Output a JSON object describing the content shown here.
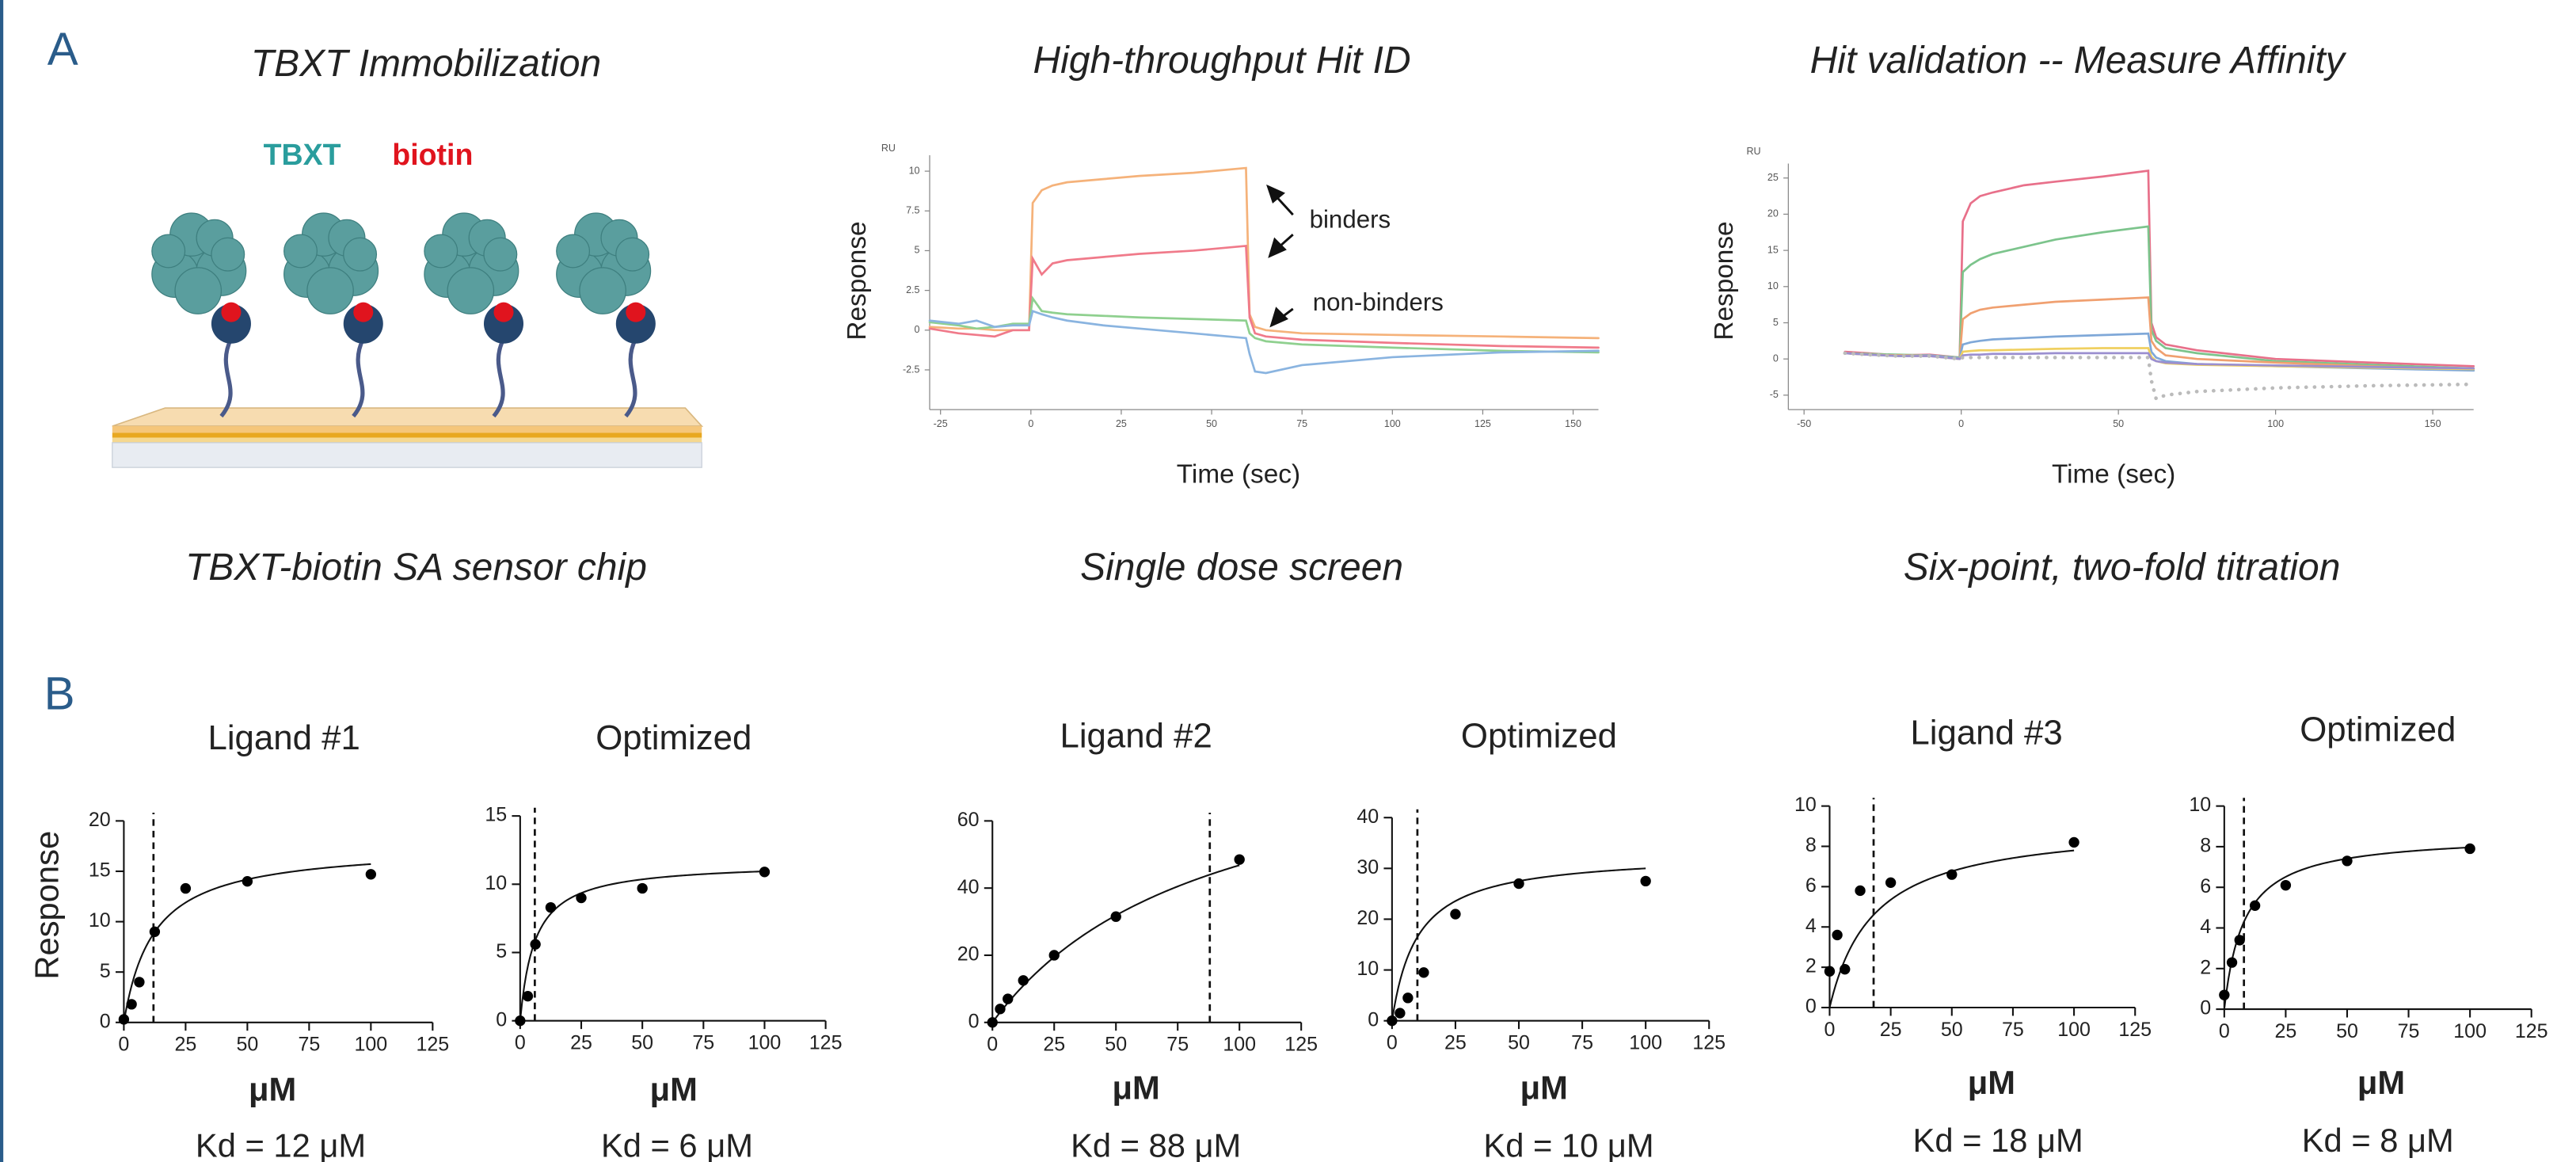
{
  "figure": {
    "panel_labels": [
      "A",
      "B"
    ],
    "immobilization": {
      "title": "TBXT  Immobilization",
      "protein_label": "TBXT",
      "tag_label": "biotin",
      "caption": "TBXT-biotin SA sensor chip"
    }
  },
  "chart_data": [
    {
      "type": "line",
      "title": "High-throughput Hit ID",
      "caption": "Single dose screen",
      "xlabel": "Time (sec)",
      "ylabel": "Response",
      "unit_label": "RU",
      "annotations": [
        "binders",
        "non-binders"
      ],
      "x": [
        -28,
        -20,
        -15,
        -10,
        -5,
        -0.5,
        0.5,
        3,
        6,
        10,
        20,
        30,
        45,
        59.5,
        60.5,
        62,
        65,
        75,
        100,
        130,
        157
      ],
      "series": [
        {
          "color": "#f5b27a",
          "values": [
            0.2,
            0.1,
            0.1,
            0,
            0,
            0,
            8.0,
            8.8,
            9.1,
            9.3,
            9.5,
            9.7,
            9.9,
            10.2,
            1.0,
            0.2,
            0,
            -0.2,
            -0.3,
            -0.4,
            -0.5
          ]
        },
        {
          "color": "#f07a8a",
          "values": [
            0.1,
            -0.2,
            -0.3,
            -0.4,
            0,
            0,
            4.5,
            3.5,
            4.2,
            4.4,
            4.6,
            4.8,
            5.0,
            5.3,
            0.8,
            -0.2,
            -0.4,
            -0.6,
            -0.8,
            -1.0,
            -1.1
          ]
        },
        {
          "color": "#8fd08f",
          "values": [
            0.5,
            0.3,
            0.1,
            0.2,
            0.4,
            0.4,
            2.0,
            1.2,
            1.1,
            1.0,
            0.9,
            0.8,
            0.7,
            0.6,
            -0.2,
            -0.5,
            -0.7,
            -0.9,
            -1.1,
            -1.3,
            -1.4
          ]
        },
        {
          "color": "#8ab4e0",
          "values": [
            0.6,
            0.4,
            0.6,
            0.2,
            0.3,
            0.3,
            1.2,
            1.0,
            0.8,
            0.6,
            0.3,
            0.1,
            -0.2,
            -0.5,
            -1.5,
            -2.6,
            -2.7,
            -2.2,
            -1.7,
            -1.4,
            -1.3
          ]
        }
      ],
      "xlim": [
        -28,
        157
      ],
      "ylim": [
        -5,
        11
      ],
      "xticks": [
        -25,
        0,
        25,
        50,
        75,
        100,
        125,
        150
      ],
      "yticks": [
        -2.5,
        0,
        2.5,
        5,
        7.5,
        10
      ]
    },
    {
      "type": "line",
      "title": "Hit validation -- Measure Affinity",
      "caption": "Six-point, two-fold titration",
      "xlabel": "Time (sec)",
      "ylabel": "Response",
      "unit_label": "RU",
      "x": [
        -37,
        -30,
        -20,
        -10,
        -0.5,
        0.5,
        3,
        6,
        10,
        20,
        30,
        45,
        59.5,
        60.5,
        62,
        65,
        75,
        100,
        130,
        163
      ],
      "series": [
        {
          "color": "#e8708a",
          "values": [
            1,
            0.8,
            0.5,
            0.6,
            0.2,
            19,
            21.5,
            22.5,
            23,
            24,
            24.5,
            25.2,
            26,
            5,
            3,
            2,
            1.2,
            0,
            -0.5,
            -1
          ]
        },
        {
          "color": "#7cc48c",
          "values": [
            0.8,
            0.7,
            0.6,
            0.5,
            0.2,
            12,
            13,
            13.8,
            14.5,
            15.5,
            16.5,
            17.5,
            18.3,
            4,
            2.5,
            1.5,
            0.8,
            -0.3,
            -0.8,
            -1.3
          ]
        },
        {
          "color": "#f0a070",
          "values": [
            0.8,
            0.6,
            0.5,
            0.5,
            0.1,
            5.5,
            6.3,
            6.8,
            7.1,
            7.5,
            7.9,
            8.2,
            8.5,
            2.5,
            1.5,
            0.5,
            0,
            -0.5,
            -1,
            -1.5
          ]
        },
        {
          "color": "#7fa8d8",
          "values": [
            0.8,
            0.6,
            0.4,
            0.5,
            0.1,
            2.0,
            2.3,
            2.5,
            2.7,
            2.9,
            3.1,
            3.3,
            3.5,
            1,
            0.2,
            -0.3,
            -0.7,
            -1,
            -1.3,
            -1.6
          ]
        },
        {
          "color": "#f0d060",
          "values": [
            0.8,
            0.6,
            0.4,
            0.4,
            0,
            1.0,
            1.1,
            1.2,
            1.2,
            1.3,
            1.4,
            1.5,
            1.5,
            0.3,
            -0.3,
            -0.6,
            -0.8,
            -1.0,
            -1.2,
            -1.4
          ]
        },
        {
          "color": "#9b8fd0",
          "values": [
            0.8,
            0.6,
            0.4,
            0.4,
            0,
            0.5,
            0.6,
            0.6,
            0.7,
            0.7,
            0.8,
            0.8,
            0.8,
            0,
            -0.3,
            -0.5,
            -0.7,
            -0.9,
            -1.1,
            -1.3
          ]
        },
        {
          "color": "#bbbbbb",
          "style": "dotted",
          "values": [
            0.8,
            0.6,
            0.4,
            0.4,
            0,
            0.2,
            0.2,
            0.2,
            0.2,
            0.2,
            0.2,
            0.2,
            0.2,
            -3,
            -5.5,
            -5,
            -4.5,
            -4,
            -3.7,
            -3.5
          ]
        }
      ],
      "xlim": [
        -55,
        163
      ],
      "ylim": [
        -7,
        27
      ],
      "xticks": [
        -50,
        0,
        50,
        100,
        150
      ],
      "yticks": [
        -5,
        0,
        5,
        10,
        15,
        20,
        25
      ]
    },
    {
      "type": "scatter",
      "title": "Ligand #1",
      "xlabel": "μM",
      "ylabel": "Response",
      "kd_label": "Kd = 12 μM",
      "kd": 12,
      "bmax": 17.6,
      "color": "#000000",
      "x": [
        0,
        3.125,
        6.25,
        12.5,
        25,
        50,
        100
      ],
      "values": [
        0.3,
        1.8,
        4,
        9,
        13.3,
        14,
        14.7
      ],
      "xlim": [
        0,
        125
      ],
      "ylim": [
        0,
        20
      ],
      "xticks": [
        0,
        25,
        50,
        75,
        100,
        125
      ],
      "yticks": [
        0,
        5,
        10,
        15,
        20
      ]
    },
    {
      "type": "scatter",
      "title": "Optimized",
      "xlabel": "μM",
      "kd_label": "Kd = 6 μM",
      "kd": 6,
      "bmax": 11.6,
      "color": "#000000",
      "x": [
        0,
        3.125,
        6.25,
        12.5,
        25,
        50,
        100
      ],
      "values": [
        0,
        1.8,
        5.6,
        8.3,
        9,
        9.7,
        10.9
      ],
      "xlim": [
        0,
        125
      ],
      "ylim": [
        0,
        15
      ],
      "xticks": [
        0,
        25,
        50,
        75,
        100,
        125
      ],
      "yticks": [
        0,
        5,
        10,
        15
      ]
    },
    {
      "type": "scatter",
      "title": "Ligand #2",
      "xlabel": "μM",
      "kd_label": "Kd = 88 μM",
      "kd": 88,
      "bmax": 88,
      "color": "#000000",
      "x": [
        0,
        3.125,
        6.25,
        12.5,
        25,
        50,
        100
      ],
      "values": [
        0,
        4,
        7,
        12.5,
        20,
        31.5,
        48.5
      ],
      "xlim": [
        0,
        125
      ],
      "ylim": [
        0,
        60
      ],
      "xticks": [
        0,
        25,
        50,
        75,
        100,
        125
      ],
      "yticks": [
        0,
        20,
        40,
        60
      ]
    },
    {
      "type": "scatter",
      "title": "Optimized",
      "xlabel": "μM",
      "kd_label": "Kd = 10 μM",
      "kd": 10,
      "bmax": 33,
      "color": "#000000",
      "x": [
        0,
        3.125,
        6.25,
        12.5,
        25,
        50,
        100
      ],
      "values": [
        0,
        1.5,
        4.5,
        9.5,
        21,
        27,
        27.5
      ],
      "xlim": [
        0,
        125
      ],
      "ylim": [
        0,
        40
      ],
      "xticks": [
        0,
        25,
        50,
        75,
        100,
        125
      ],
      "yticks": [
        0,
        10,
        20,
        30,
        40
      ]
    },
    {
      "type": "scatter",
      "title": "Ligand #3",
      "xlabel": "μM",
      "kd_label": "Kd = 18 μM",
      "kd": 18,
      "bmax": 9.2,
      "color": "#000000",
      "x": [
        0,
        3.125,
        6.25,
        12.5,
        25,
        50,
        100
      ],
      "values": [
        1.8,
        3.6,
        1.9,
        5.8,
        6.2,
        6.6,
        8.2
      ],
      "xlim": [
        0,
        125
      ],
      "ylim": [
        0,
        10
      ],
      "xticks": [
        0,
        25,
        50,
        75,
        100,
        125
      ],
      "yticks": [
        0,
        2,
        4,
        6,
        8,
        10
      ]
    },
    {
      "type": "scatter",
      "title": "Optimized",
      "xlabel": "μM",
      "kd_label": "Kd = 8 μM",
      "kd": 8,
      "bmax": 8.6,
      "color": "#000000",
      "x": [
        0,
        3.125,
        6.25,
        12.5,
        25,
        50,
        100
      ],
      "values": [
        0.7,
        2.3,
        3.4,
        5.1,
        6.1,
        7.3,
        7.9
      ],
      "xlim": [
        0,
        125
      ],
      "ylim": [
        0,
        10
      ],
      "xticks": [
        0,
        25,
        50,
        75,
        100,
        125
      ],
      "yticks": [
        0,
        2,
        4,
        6,
        8,
        10
      ]
    }
  ]
}
